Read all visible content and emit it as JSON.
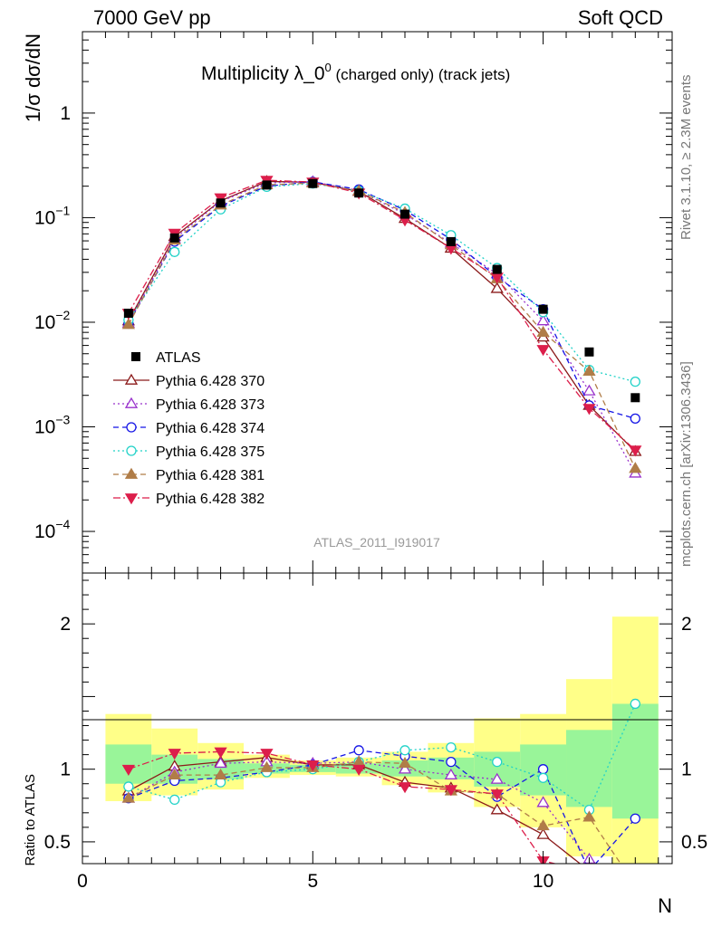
{
  "header": {
    "left": "7000 GeV pp",
    "right": "Soft QCD",
    "title_main": "Multiplicity λ_0",
    "title_sup": "0",
    "title_tail": " (charged only) (track jets)",
    "side_top": "Rivet 3.1.10, ≥ 2.3M events",
    "side_bottom": "mcplots.cern.ch [arXiv:1306.3436]",
    "analysis_id": "ATLAS_2011_I919017"
  },
  "colors": {
    "ATLAS": "#000000",
    "p370": "#8b1a1a",
    "p373": "#9932cc",
    "p374": "#1515e6",
    "p375": "#22d2c8",
    "p381": "#b07d48",
    "p382": "#dc1e4b",
    "band_green": "#99f599",
    "band_yellow": "#ffff88"
  },
  "chart_data": [
    {
      "type": "line",
      "scale": "log",
      "ylabel": "1/σ dσ/dN",
      "xlim": [
        0,
        12.8
      ],
      "ylim": [
        4e-05,
        6
      ],
      "y_ticks": [
        {
          "value": 1,
          "label": "1"
        },
        {
          "value": 0.1,
          "label": "10",
          "exp": "−1"
        },
        {
          "value": 0.01,
          "label": "10",
          "exp": "−2"
        },
        {
          "value": 0.001,
          "label": "10",
          "exp": "−3"
        },
        {
          "value": 0.0001,
          "label": "10",
          "exp": "−4"
        }
      ],
      "x": [
        1,
        2,
        3,
        4,
        5,
        6,
        7,
        8,
        9,
        10,
        11,
        12
      ],
      "data": {
        "name": "ATLAS",
        "values": [
          0.0122,
          0.064,
          0.138,
          0.205,
          0.212,
          0.172,
          0.108,
          0.059,
          0.032,
          0.0133,
          0.0052,
          0.0019
        ]
      },
      "series": [
        {
          "name": "Pythia 6.428 370",
          "key": "p370",
          "marker": "triangle-up-open",
          "dash": "solid",
          "values": [
            0.0103,
            0.066,
            0.145,
            0.222,
            0.218,
            0.178,
            0.098,
            0.051,
            0.021,
            0.0072,
            0.0016,
            0.00058
          ]
        },
        {
          "name": "Pythia 6.428 373",
          "key": "p373",
          "marker": "triangle-up-open",
          "dash": "dotted",
          "values": [
            0.0098,
            0.063,
            0.143,
            0.215,
            0.221,
            0.181,
            0.108,
            0.057,
            0.029,
            0.0103,
            0.0022,
            0.00036
          ]
        },
        {
          "name": "Pythia 6.428 374",
          "key": "p374",
          "marker": "circle-open",
          "dash": "dashed",
          "values": [
            0.0097,
            0.059,
            0.129,
            0.2,
            0.22,
            0.186,
            0.118,
            0.062,
            0.027,
            0.0133,
            0.0016,
            0.0012
          ]
        },
        {
          "name": "Pythia 6.428 375",
          "key": "p375",
          "marker": "circle-open",
          "dash": "dotted",
          "values": [
            0.0105,
            0.047,
            0.12,
            0.197,
            0.212,
            0.18,
            0.122,
            0.068,
            0.033,
            0.0125,
            0.0035,
            0.0027
          ]
        },
        {
          "name": "Pythia 6.428 381",
          "key": "p381",
          "marker": "triangle-up-filled",
          "dash": "dashed",
          "values": [
            0.0095,
            0.061,
            0.132,
            0.206,
            0.214,
            0.18,
            0.112,
            0.055,
            0.026,
            0.008,
            0.0034,
            0.0004
          ]
        },
        {
          "name": "Pythia 6.428 382",
          "key": "p382",
          "marker": "triangle-down-filled",
          "dash": "dashdot",
          "values": [
            0.0122,
            0.071,
            0.155,
            0.228,
            0.219,
            0.172,
            0.095,
            0.051,
            0.027,
            0.0055,
            0.0015,
            0.0006
          ]
        }
      ]
    },
    {
      "type": "line",
      "ylabel": "Ratio to ATLAS",
      "xlabel": "N",
      "xlim": [
        0,
        12.8
      ],
      "ylim": [
        0.35,
        2.35
      ],
      "y_ticks": [
        {
          "value": 0.5,
          "label": "0.5"
        },
        {
          "value": 1,
          "label": "1"
        },
        {
          "value": 2,
          "label": "2"
        }
      ],
      "x_ticks": [
        {
          "value": 0,
          "label": "0"
        },
        {
          "value": 5,
          "label": "5"
        },
        {
          "value": 10,
          "label": "10"
        }
      ],
      "x": [
        1,
        2,
        3,
        4,
        5,
        6,
        7,
        8,
        9,
        10,
        11,
        12
      ],
      "band_inner": [
        [
          0.9,
          1.17
        ],
        [
          0.9,
          1.1
        ],
        [
          0.93,
          1.07
        ],
        [
          0.97,
          1.04
        ],
        [
          0.98,
          1.03
        ],
        [
          0.97,
          1.04
        ],
        [
          0.95,
          1.06
        ],
        [
          0.93,
          1.08
        ],
        [
          0.88,
          1.12
        ],
        [
          0.82,
          1.17
        ],
        [
          0.74,
          1.27
        ],
        [
          0.66,
          1.45
        ]
      ],
      "band_outer": [
        [
          0.78,
          1.38
        ],
        [
          0.82,
          1.28
        ],
        [
          0.86,
          1.18
        ],
        [
          0.94,
          1.1
        ],
        [
          0.96,
          1.06
        ],
        [
          0.95,
          1.08
        ],
        [
          0.89,
          1.12
        ],
        [
          0.84,
          1.18
        ],
        [
          0.74,
          1.35
        ],
        [
          0.6,
          1.38
        ],
        [
          0.4,
          1.62
        ],
        [
          0.35,
          2.05
        ]
      ],
      "series": [
        {
          "key": "p370",
          "values": [
            0.85,
            1.02,
            1.05,
            1.08,
            1.03,
            1.03,
            0.91,
            0.87,
            0.72,
            0.55,
            0.3,
            0.3
          ]
        },
        {
          "key": "p373",
          "values": [
            0.8,
            0.98,
            1.04,
            1.05,
            1.04,
            1.05,
            1.0,
            0.96,
            0.93,
            0.77,
            0.38,
            0.19
          ]
        },
        {
          "key": "p374",
          "values": [
            0.8,
            0.92,
            0.94,
            0.98,
            1.03,
            1.13,
            1.09,
            1.05,
            0.81,
            1.0,
            0.3,
            0.66
          ]
        },
        {
          "key": "p375",
          "values": [
            0.88,
            0.79,
            0.91,
            0.98,
            1.0,
            1.05,
            1.13,
            1.15,
            1.05,
            0.94,
            0.72,
            1.45
          ]
        },
        {
          "key": "p381",
          "values": [
            0.8,
            0.96,
            0.96,
            1.01,
            1.01,
            1.05,
            1.04,
            0.85,
            0.83,
            0.61,
            0.67,
            0.2
          ]
        },
        {
          "key": "p382",
          "values": [
            1.0,
            1.11,
            1.12,
            1.11,
            1.03,
            1.0,
            0.88,
            0.86,
            0.83,
            0.37,
            0.29,
            0.3
          ]
        }
      ]
    }
  ]
}
